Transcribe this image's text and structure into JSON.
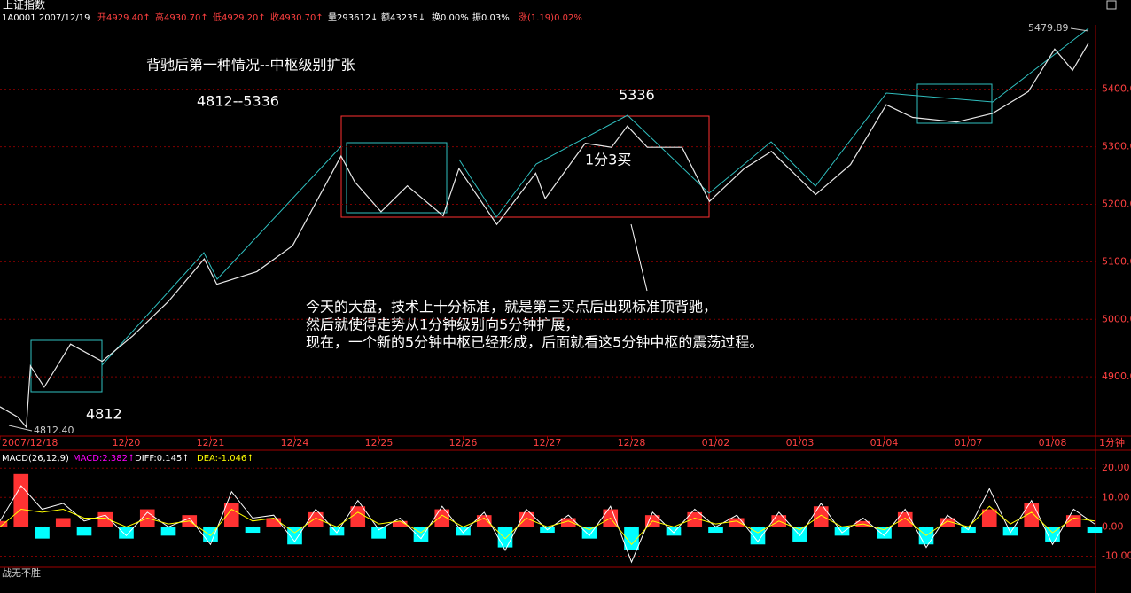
{
  "header": {
    "title": "上证指数",
    "code_date": "1A0001 2007/12/19",
    "open": "开4929.40↑",
    "high": "高4930.70↑",
    "low": "低4929.20↑",
    "close": "收4930.70↑",
    "volume": "量293612↓",
    "amount": "额43235↓",
    "turnover": "换0.00%",
    "amplitude": "振0.03%",
    "change": "涨(1.19)0.02%",
    "period": "1分钟",
    "macd_params": "MACD(26,12,9)",
    "footer": "战无不胜"
  },
  "annotations": {
    "heading": "背驰后第一种情况--中枢级别扩张",
    "range": "4812--5336",
    "peak": "5336",
    "buy": "1分3买",
    "low": "4812",
    "low_price": "4812.40",
    "high_price": "5479.89",
    "comment": [
      "今天的大盘，技术上十分标准，就是第三买点后出现标准顶背驰，",
      "然后就使得走势从1分钟级别向5分钟扩展，",
      "现在，一个新的5分钟中枢已经形成，后面就看这5分钟中枢的震荡过程。"
    ]
  },
  "chart_data": [
    {
      "type": "line",
      "color": "#e8e8e8",
      "grid": true,
      "x": [
        0,
        1.7,
        2.5,
        2.9,
        4.2,
        6.7,
        9.7,
        12.6,
        16,
        19.4,
        20.6,
        24.4,
        27.8,
        32.4,
        33.7,
        36.2,
        38.7,
        42.1,
        43.6,
        47.2,
        50.9,
        51.8,
        55.6,
        58.1,
        59.6,
        61.5,
        64.8,
        67.4,
        70.7,
        73.3,
        77.5,
        80.8,
        84.2,
        86.7,
        90.9,
        94.3,
        97.7,
        100.2,
        101.9,
        103.4
      ],
      "values": [
        4848,
        4830,
        4812.4,
        4919,
        4882,
        4957,
        4927,
        4971,
        5031,
        5105,
        5061,
        5083,
        5128,
        5284,
        5239,
        5187,
        5232,
        5180,
        5262,
        5165,
        5254,
        5210,
        5306,
        5299,
        5336,
        5299,
        5299,
        5205,
        5262,
        5292,
        5217,
        5269,
        5373,
        5351,
        5343,
        5358,
        5396,
        5470,
        5433,
        5479.89
      ],
      "xlim": [
        0,
        104
      ],
      "xticks": [
        {
          "value": 0,
          "label": "2007/12/18"
        },
        {
          "value": 12,
          "label": "12/20"
        },
        {
          "value": 20,
          "label": "12/21"
        },
        {
          "value": 28,
          "label": "12/24"
        },
        {
          "value": 36,
          "label": "12/25"
        },
        {
          "value": 44,
          "label": "12/26"
        },
        {
          "value": 52,
          "label": "12/27"
        },
        {
          "value": 60,
          "label": "12/28"
        },
        {
          "value": 68,
          "label": "01/02"
        },
        {
          "value": 76,
          "label": "01/03"
        },
        {
          "value": 84,
          "label": "01/04"
        },
        {
          "value": 92,
          "label": "01/07"
        },
        {
          "value": 100,
          "label": "01/08"
        }
      ],
      "ylim": [
        4797,
        5512
      ],
      "yticks": [
        {
          "value": 4900,
          "label": "4900.0"
        },
        {
          "value": 5000,
          "label": "5000.0"
        },
        {
          "value": 5100,
          "label": "5100.0"
        },
        {
          "value": 5200,
          "label": "5200.0"
        },
        {
          "value": 5300,
          "label": "5300.0"
        },
        {
          "value": 5400,
          "label": "5400.0"
        }
      ]
    },
    {
      "type": "macd",
      "grid": true,
      "x": [
        0,
        2,
        4,
        6,
        8,
        10,
        12,
        14,
        16,
        18,
        20,
        22,
        24,
        26,
        28,
        30,
        32,
        34,
        36,
        38,
        40,
        42,
        44,
        46,
        48,
        50,
        52,
        54,
        56,
        58,
        60,
        62,
        64,
        66,
        68,
        70,
        72,
        74,
        76,
        78,
        80,
        82,
        84,
        86,
        88,
        90,
        92,
        94,
        96,
        98,
        100,
        102,
        104
      ],
      "xlim": [
        0,
        104
      ],
      "ylim": [
        -18.3,
        26.1
      ],
      "yticks": [
        {
          "value": 20,
          "label": "20.00"
        },
        {
          "value": 10,
          "label": "10.00"
        },
        {
          "value": 0,
          "label": "0.00"
        },
        {
          "value": -10,
          "label": "-10.00"
        }
      ],
      "series": [
        {
          "name": "MACD:2.382↑",
          "kind": "bar",
          "color": "#ff00ff",
          "up_color": "#ff3232",
          "down_color": "#00ffff",
          "values": [
            2,
            18,
            -4,
            3,
            -3,
            5,
            -4,
            6,
            -3,
            4,
            -5,
            8,
            -2,
            3,
            -6,
            5,
            -3,
            7,
            -4,
            2,
            -5,
            6,
            -3,
            4,
            -7,
            5,
            -2,
            3,
            -4,
            6,
            -8,
            4,
            -3,
            5,
            -2,
            3,
            -6,
            4,
            -5,
            7,
            -3,
            2,
            -4,
            5,
            -6,
            3,
            -2,
            6,
            -3,
            8,
            -5,
            4,
            -2
          ]
        },
        {
          "name": "DIFF:0.145↑",
          "kind": "line",
          "color": "#ffffff",
          "values": [
            2,
            14,
            6,
            8,
            2,
            4,
            -3,
            5,
            0,
            3,
            -6,
            12,
            3,
            4,
            -5,
            6,
            -2,
            9,
            -1,
            3,
            -4,
            7,
            -2,
            5,
            -8,
            6,
            -1,
            4,
            -3,
            7,
            -12,
            5,
            -2,
            6,
            0,
            4,
            -5,
            5,
            -3,
            8,
            -2,
            3,
            -3,
            6,
            -7,
            4,
            -1,
            13,
            -2,
            9,
            -6,
            6,
            1
          ]
        },
        {
          "name": "DEA:-1.046↑",
          "kind": "line",
          "color": "#ffff00",
          "values": [
            0,
            6,
            5,
            6,
            3,
            3,
            0,
            3,
            1,
            2,
            -3,
            6,
            2,
            3,
            -2,
            3,
            0,
            5,
            1,
            2,
            -2,
            4,
            0,
            3,
            -4,
            3,
            0,
            2,
            -1,
            3,
            -6,
            2,
            0,
            3,
            1,
            2,
            -2,
            2,
            -1,
            4,
            0,
            1,
            -1,
            3,
            -3,
            2,
            0,
            7,
            1,
            5,
            -2,
            3,
            2
          ]
        }
      ]
    }
  ]
}
